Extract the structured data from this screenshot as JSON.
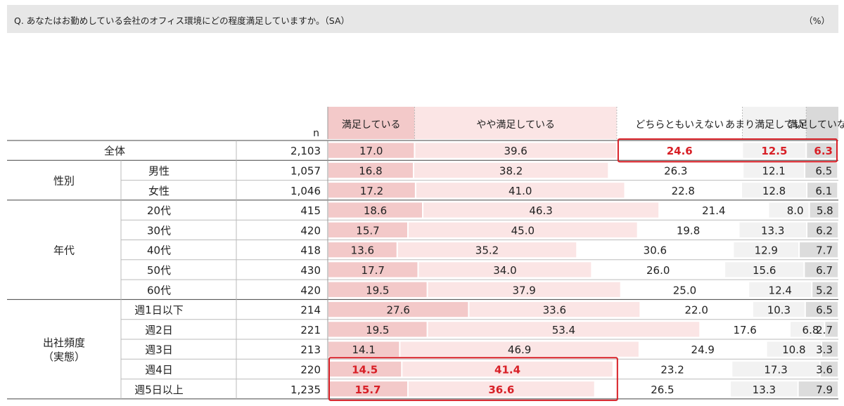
{
  "question": "Q. あなたはお勤めしている会社のオフィス環境にどの程度満足していますか。（SA）",
  "unit": "（%）",
  "chart_data": {
    "type": "bar",
    "stacked": true,
    "orientation": "horizontal",
    "normalized_to": 100,
    "n_header": "n",
    "series": [
      {
        "name": "満足している",
        "color": "#f3c9c9",
        "header_bg": "#f3c9c9"
      },
      {
        "name": "やや満足している",
        "color": "#fbe5e5",
        "header_bg": "#fbe5e5"
      },
      {
        "name": "どちらともいえない",
        "color": "#ffffff",
        "header_bg": "#ffffff"
      },
      {
        "name": "あまり満足していない",
        "color": "#f2f2f2",
        "header_bg": "#f2f2f2"
      },
      {
        "name": "満足していない",
        "color": "#dcdcdc",
        "header_bg": "#d9d9d9"
      }
    ],
    "groups": [
      {
        "label": "全体",
        "rows": [
          {
            "label": "",
            "n": "2,103",
            "values": [
              17.0,
              39.6,
              24.6,
              12.5,
              6.3
            ],
            "highlight": [
              false,
              false,
              true,
              true,
              true
            ]
          }
        ]
      },
      {
        "label": "性別",
        "rows": [
          {
            "label": "男性",
            "n": "1,057",
            "values": [
              16.8,
              38.2,
              26.3,
              12.1,
              6.5
            ]
          },
          {
            "label": "女性",
            "n": "1,046",
            "values": [
              17.2,
              41.0,
              22.8,
              12.8,
              6.1
            ]
          }
        ]
      },
      {
        "label": "年代",
        "rows": [
          {
            "label": "20代",
            "n": "415",
            "values": [
              18.6,
              46.3,
              21.4,
              8.0,
              5.8
            ]
          },
          {
            "label": "30代",
            "n": "420",
            "values": [
              15.7,
              45.0,
              19.8,
              13.3,
              6.2
            ]
          },
          {
            "label": "40代",
            "n": "418",
            "values": [
              13.6,
              35.2,
              30.6,
              12.9,
              7.7
            ]
          },
          {
            "label": "50代",
            "n": "430",
            "values": [
              17.7,
              34.0,
              26.0,
              15.6,
              6.7
            ]
          },
          {
            "label": "60代",
            "n": "420",
            "values": [
              19.5,
              37.9,
              25.0,
              12.4,
              5.2
            ]
          }
        ]
      },
      {
        "label": "出社頻度\n（実態）",
        "rows": [
          {
            "label": "週1日以下",
            "n": "214",
            "values": [
              27.6,
              33.6,
              22.0,
              10.3,
              6.5
            ]
          },
          {
            "label": "週2日",
            "n": "221",
            "values": [
              19.5,
              53.4,
              17.6,
              6.8,
              2.7
            ]
          },
          {
            "label": "週3日",
            "n": "213",
            "values": [
              14.1,
              46.9,
              24.9,
              10.8,
              3.3
            ]
          },
          {
            "label": "週4日",
            "n": "220",
            "values": [
              14.5,
              41.4,
              23.2,
              17.3,
              3.6
            ],
            "highlight": [
              true,
              true,
              false,
              false,
              false
            ]
          },
          {
            "label": "週5日以上",
            "n": "1,235",
            "values": [
              15.7,
              36.6,
              26.5,
              13.3,
              7.9
            ],
            "highlight": [
              true,
              true,
              false,
              false,
              false
            ]
          }
        ]
      }
    ],
    "highlight_color": "#d81f26"
  }
}
